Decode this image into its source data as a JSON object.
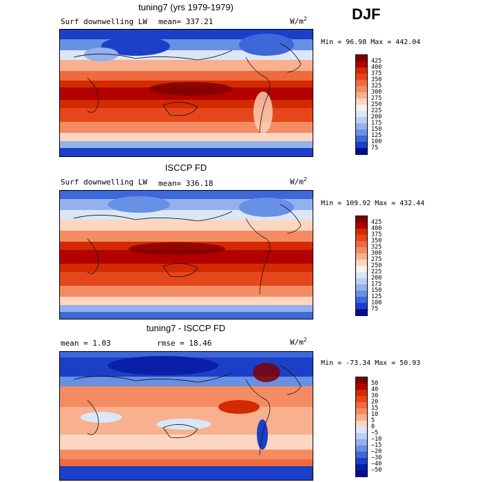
{
  "season": "DJF",
  "units_label": "W/m",
  "units_exp": "2",
  "panels": [
    {
      "title": "tuning7 (yrs 1979-1979)",
      "variable": "Surf downwelling LW",
      "stat1": "mean=  337.21",
      "min_max": "Min =   96.98 Max =  442.04",
      "colorbar": [
        "425",
        "400",
        "375",
        "350",
        "325",
        "300",
        "275",
        "250",
        "225",
        "200",
        "175",
        "150",
        "125",
        "100",
        "75"
      ]
    },
    {
      "title": "ISCCP FD",
      "variable": "Surf downwelling LW",
      "stat1": "mean=  336.18",
      "min_max": "Min =  109.92 Max =  432.44",
      "colorbar": [
        "425",
        "400",
        "375",
        "350",
        "325",
        "300",
        "275",
        "250",
        "225",
        "200",
        "175",
        "150",
        "125",
        "100",
        "75"
      ]
    },
    {
      "title": "tuning7 - ISCCP FD",
      "stat1": "mean =    1.03",
      "stat2": "rmse =   18.46",
      "min_max": "Min = -73.34 Max =   50.93",
      "colorbar": [
        "50",
        "40",
        "30",
        "20",
        "15",
        "10",
        "5",
        "0",
        "−5",
        "−10",
        "−15",
        "−20",
        "−30",
        "−40",
        "−50"
      ]
    }
  ],
  "colors": {
    "abs_palette": [
      "#7f0000",
      "#b30000",
      "#d42a00",
      "#e6461c",
      "#ef6a3c",
      "#f48c63",
      "#f8b08e",
      "#fcd6c0",
      "#fdf0e7",
      "#dbe6f8",
      "#b9cff3",
      "#93b1ec",
      "#6890e4",
      "#3d68d9",
      "#1c3fc7",
      "#000f8c"
    ],
    "diff_palette": [
      "#7f0000",
      "#b30000",
      "#d42a00",
      "#e6461c",
      "#ef6a3c",
      "#f48c63",
      "#f8b08e",
      "#fcd6c0",
      "#dbe6f8",
      "#b9cff3",
      "#93b1ec",
      "#6890e4",
      "#3d68d9",
      "#1c3fc7",
      "#0a1fa8",
      "#000f8c"
    ]
  }
}
